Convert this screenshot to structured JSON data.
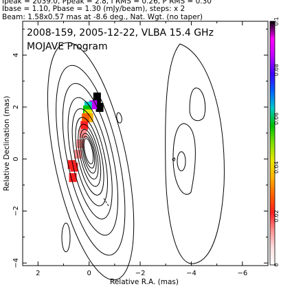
{
  "header": {
    "line1": "Ipeak = 2039.0, Ppeak = 2.8, I RMS = 0.26, P RMS = 0.30",
    "line2": "Ibase = 1.10, Pbase = 1.30 (mJy/beam), steps: x 2",
    "line3": "Beam: 1.58x0.57 mas at -8.6 deg., Nat. Wgt. (no taper)"
  },
  "chart_data": {
    "type": "contour",
    "title": "2008-159, 2005-12-22, VLBA 15.4 GHz",
    "subtitle": "MOJAVE Program",
    "xlabel": "Relative R.A. (mas)",
    "ylabel": "Relative Declination (mas)",
    "xlim": [
      2.6,
      -7.0
    ],
    "ylim": [
      -4.1,
      5.3
    ],
    "x_ticks": [
      2,
      0,
      -2,
      -4,
      -6
    ],
    "y_ticks": [
      -4,
      -2,
      0,
      2,
      4
    ],
    "colorbar": {
      "min": 0,
      "max": 0.1,
      "ticks": [
        0,
        0.02,
        0.04,
        0.06,
        0.08,
        0.1
      ],
      "colors": [
        "#ffffff",
        "#ffe0e0",
        "#ff9090",
        "#ff2020",
        "#ff6000",
        "#ffb000",
        "#e8e800",
        "#80e000",
        "#00c000",
        "#00c8c8",
        "#0060ff",
        "#4000ff",
        "#c000ff",
        "#ff00ff",
        "#000000"
      ]
    },
    "contours": {
      "center": [
        0.02,
        0.3
      ],
      "base_semi_axes": [
        0.15,
        0.5
      ],
      "levels": 11,
      "growth": 1.25,
      "rotation_deg": -12
    },
    "polarization_pixels": [
      {
        "x": -0.3,
        "y": 2.4,
        "v": 0.1
      },
      {
        "x": -0.3,
        "y": 2.2,
        "v": 0.1
      },
      {
        "x": -0.4,
        "y": 2.0,
        "v": 0.1
      },
      {
        "x": -0.15,
        "y": 2.1,
        "v": 0.085
      },
      {
        "x": 0.05,
        "y": 2.05,
        "v": 0.065
      },
      {
        "x": 0.1,
        "y": 1.9,
        "v": 0.055
      },
      {
        "x": 0.05,
        "y": 1.75,
        "v": 0.045
      },
      {
        "x": 0.0,
        "y": 1.6,
        "v": 0.035
      },
      {
        "x": 0.15,
        "y": 1.6,
        "v": 0.03
      },
      {
        "x": 0.2,
        "y": 1.3,
        "v": 0.02
      },
      {
        "x": 0.25,
        "y": 1.0,
        "v": 0.016
      },
      {
        "x": 0.35,
        "y": 0.6,
        "v": 0.014
      },
      {
        "x": 0.45,
        "y": 0.2,
        "v": 0.013
      },
      {
        "x": 0.6,
        "y": -0.3,
        "v": 0.018
      },
      {
        "x": 0.65,
        "y": -0.7,
        "v": 0.022
      },
      {
        "x": 0.7,
        "y": -0.2,
        "v": 0.024
      }
    ]
  }
}
